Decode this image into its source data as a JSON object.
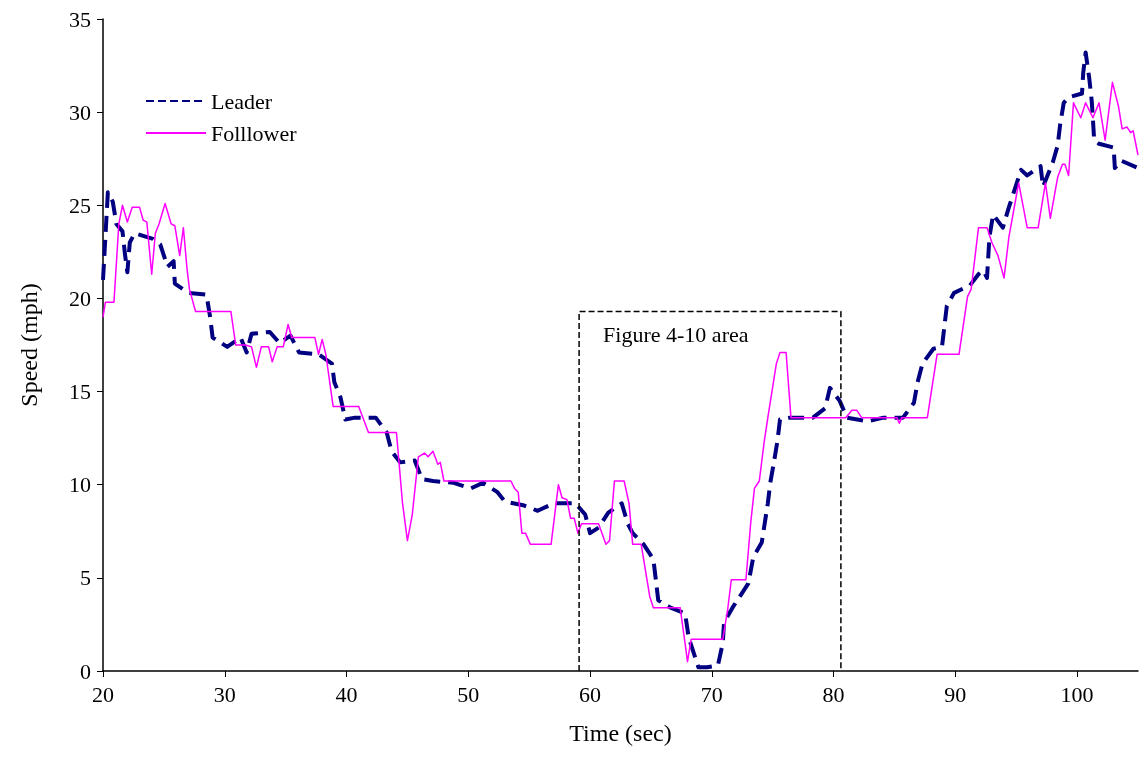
{
  "chart_data": {
    "type": "line",
    "xlabel": "Time (sec)",
    "ylabel": "Speed (mph)",
    "xlim": [
      20,
      105
    ],
    "xticks": [
      20,
      30,
      40,
      50,
      60,
      70,
      80,
      90,
      100
    ],
    "ylim": [
      0,
      35
    ],
    "yticks": [
      0,
      5,
      10,
      15,
      20,
      25,
      30,
      35
    ],
    "grid": false,
    "legend": "top left",
    "marker": "none",
    "annotations": [
      "Figure 4-10 area"
    ],
    "series": [
      {
        "name": "Leader",
        "color": "#000080",
        "line_style": "dashed",
        "x": [
          20,
          20.4,
          20.8,
          21.1,
          21.6,
          21.8,
          22.0,
          22.2,
          22.6,
          24.1,
          24.7,
          25.3,
          25.8,
          25.9,
          27.0,
          28.5,
          28.8,
          29.0,
          30.2,
          31.3,
          31.8,
          32.2,
          33.7,
          34.5,
          35.4,
          36.1,
          37.7,
          38.8,
          39.0,
          39.5,
          39.9,
          40.7,
          42.4,
          43.3,
          43.7,
          44.4,
          45.6,
          46.2,
          47.1,
          48.8,
          50.2,
          51.2,
          52.4,
          53.0,
          54.5,
          55.7,
          57.0,
          58.8,
          59.6,
          60.0,
          60.7,
          61.5,
          62.6,
          63.1,
          63.5,
          64.4,
          65.2,
          65.6,
          66.6,
          67.8,
          68.1,
          68.9,
          69.6,
          70.5,
          70.9,
          71.0,
          71.7,
          73.0,
          73.4,
          74.1,
          74.6,
          74.8,
          75.1,
          75.4,
          75.6,
          76.4,
          78.3,
          79.3,
          79.7,
          80.5,
          81.1,
          82.8,
          84.1,
          85.7,
          86.6,
          86.9,
          87.3,
          88.2,
          88.9,
          89.1,
          89.3,
          89.9,
          91.2,
          91.9,
          92.3,
          92.6,
          92.7,
          92.8,
          93.1,
          93.9,
          94.4,
          95.4,
          95.9,
          97.0,
          97.2,
          98.0,
          98.4,
          98.6,
          98.9,
          99.3,
          100.4,
          100.5,
          100.7,
          101.0,
          101.2,
          101.3,
          101.4,
          101.8,
          103.0,
          103.1,
          103.6,
          105
        ],
        "values": [
          21,
          25.7,
          25.2,
          24.0,
          23.6,
          22.4,
          21.4,
          23.0,
          23.5,
          23.2,
          22.9,
          21.7,
          22.0,
          20.8,
          20.3,
          20.2,
          19.0,
          17.9,
          17.4,
          17.9,
          17.1,
          18.1,
          18.2,
          17.6,
          18.0,
          17.1,
          17.0,
          16.5,
          15.5,
          14.7,
          13.5,
          13.6,
          13.6,
          12.8,
          11.8,
          11.2,
          11.3,
          10.3,
          10.2,
          10.1,
          9.8,
          10.1,
          9.6,
          9.1,
          8.9,
          8.6,
          9.0,
          9.0,
          8.4,
          7.4,
          7.7,
          8.5,
          9.0,
          7.9,
          7.4,
          6.8,
          6.0,
          3.8,
          3.4,
          3.1,
          1.8,
          0.2,
          0.2,
          0.3,
          1.5,
          2.6,
          3.4,
          4.7,
          6.1,
          6.9,
          9.0,
          10.1,
          11.2,
          12.4,
          13.5,
          13.6,
          13.6,
          14.1,
          15.2,
          14.5,
          13.6,
          13.4,
          13.6,
          13.6,
          14.4,
          15.5,
          16.5,
          17.3,
          17.4,
          18.5,
          19.6,
          20.3,
          20.7,
          21.3,
          21.5,
          21.1,
          22.2,
          23.3,
          24.5,
          23.8,
          24.9,
          26.9,
          26.6,
          27.1,
          26.0,
          27.3,
          28.2,
          29.3,
          30.5,
          30.8,
          31.0,
          32.1,
          33.2,
          31.8,
          30.6,
          29.6,
          28.5,
          28.3,
          28.1,
          27.0,
          27.4,
          27.0
        ]
      },
      {
        "name": "Folllower",
        "color": "#ff00ff",
        "line_style": "solid",
        "x": [
          20,
          20.2,
          20.9,
          21.3,
          21.6,
          22.0,
          22.4,
          23.0,
          23.3,
          23.6,
          24.0,
          24.3,
          24.6,
          25.1,
          25.6,
          25.9,
          26.3,
          26.6,
          26.9,
          27.1,
          27.6,
          30.5,
          30.9,
          31.7,
          32.2,
          32.6,
          33.0,
          33.6,
          33.9,
          34.3,
          34.8,
          35.2,
          35.5,
          37.4,
          37.7,
          38.0,
          38.3,
          38.9,
          41.0,
          41.8,
          44.1,
          44.6,
          45.0,
          45.4,
          45.9,
          46.4,
          46.7,
          47.1,
          47.5,
          47.7,
          48.0,
          53.5,
          53.8,
          54.1,
          54.4,
          54.7,
          55.1,
          56.8,
          57.4,
          57.7,
          58.1,
          58.4,
          58.7,
          59.0,
          59.3,
          60.7,
          61.3,
          61.6,
          62.0,
          62.8,
          63.2,
          63.5,
          64.2,
          64.9,
          65.2,
          67.4,
          67.8,
          68.0,
          68.3,
          70.9,
          71.3,
          71.6,
          72.8,
          73.2,
          73.5,
          73.9,
          74.3,
          74.6,
          75.3,
          75.6,
          76.1,
          76.5,
          81.0,
          81.5,
          81.9,
          82.3,
          85.2,
          85.4,
          85.6,
          87.7,
          88.5,
          90.3,
          91.0,
          91.3,
          91.9,
          92.6,
          93.0,
          93.5,
          94.0,
          94.4,
          95.2,
          95.9,
          96.8,
          97.4,
          97.8,
          98.4,
          98.8,
          99.0,
          99.3,
          99.7,
          100.3,
          100.7,
          101.3,
          101.8,
          102.3,
          102.9,
          103.4,
          103.7,
          104.1,
          104.4,
          104.6,
          105
        ],
        "values": [
          19,
          19.8,
          19.8,
          24,
          25,
          24.1,
          24.9,
          24.9,
          24.2,
          24.1,
          21.3,
          23.5,
          24.0,
          25.1,
          24.0,
          23.9,
          22.3,
          23.8,
          21.6,
          20.5,
          19.3,
          19.3,
          17.5,
          17.5,
          17.4,
          16.3,
          17.4,
          17.4,
          16.6,
          17.4,
          17.4,
          18.6,
          17.9,
          17.9,
          17.0,
          17.8,
          17.0,
          14.2,
          14.2,
          12.8,
          12.8,
          9,
          7.0,
          8.4,
          11.5,
          11.7,
          11.5,
          11.8,
          11.1,
          11.2,
          10.2,
          10.2,
          9.8,
          9.6,
          7.4,
          7.4,
          6.8,
          6.8,
          10.0,
          9.3,
          9.2,
          8.2,
          8.2,
          7.4,
          7.9,
          7.9,
          6.8,
          7.0,
          10.2,
          10.2,
          9.0,
          6.8,
          6.8,
          4.0,
          3.4,
          3.4,
          1.5,
          0.5,
          1.7,
          1.7,
          3.3,
          4.9,
          4.9,
          8,
          9.8,
          10.2,
          12.3,
          13.6,
          16.5,
          17.1,
          17.1,
          13.6,
          13.6,
          14.0,
          14.0,
          13.6,
          13.6,
          13.3,
          13.6,
          13.6,
          17.0,
          17.0,
          20.1,
          20.5,
          23.8,
          23.8,
          23.0,
          22.3,
          21.1,
          23.3,
          26.2,
          23.8,
          23.8,
          26.2,
          24.3,
          26.5,
          27.2,
          27.2,
          26.6,
          30.5,
          29.7,
          30.5,
          29.7,
          30.5,
          28.5,
          31.6,
          30.3,
          29.1,
          29.2,
          28.9,
          29.0,
          27.7
        ]
      },
      {
        "color": "#000000",
        "line_style": "dashed",
        "x": [
          59.1,
          59.1,
          80.6,
          80.6
        ],
        "values": [
          0,
          19.3,
          19.3,
          0
        ]
      }
    ]
  }
}
